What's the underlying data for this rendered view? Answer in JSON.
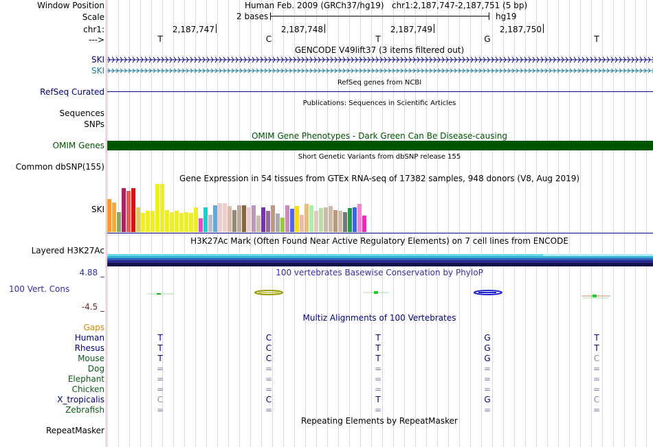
{
  "labels": {
    "window_position": "Window Position",
    "scale": "Scale",
    "chr": "chr1:",
    "arrow": "--->",
    "ski1": "SKI",
    "ski2": "SKI",
    "refseq": "RefSeq Curated",
    "sequences": "Sequences",
    "snps": "SNPs",
    "omim": "OMIM Genes",
    "dbsnp": "Common dbSNP(155)",
    "gtex_ski": "SKI",
    "h3k27ac": "Layered H3K27Ac",
    "cons_top": "4.88 _",
    "cons_name": "100 Vert. Cons",
    "cons_bottom": "-4.5 _",
    "repeatmasker": "RepeatMasker"
  },
  "header": {
    "assembly": "Human Feb. 2009 (GRCh37/hg19)",
    "position": "chr1:2,187,747-2,187,751 (5 bp)",
    "scale_text": "2 bases",
    "db": "hg19",
    "ticks": [
      "2,187,747",
      "2,187,748",
      "2,187,749",
      "2,187,750"
    ],
    "bases": [
      "T",
      "C",
      "T",
      "G",
      "T"
    ]
  },
  "tracks": {
    "gencode": "GENCODE V49lift37 (3 items filtered out)",
    "refseq": "RefSeq genes from NCBI",
    "publications": "Publications: Sequences in Scientific Articles",
    "omim": "OMIM Gene Phenotypes - Dark Green Can Be Disease-causing",
    "dbsnp": "Short Genetic Variants from dbSNP release 155",
    "gtex": "Gene Expression in 54 tissues from GTEx RNA-seq of 17382 samples, 948 donors (V8, Aug 2019)",
    "h3k27ac": "H3K27Ac Mark (Often Found Near Active Regulatory Elements) on 7 cell lines from ENCODE",
    "phylop": "100 vertebrates Basewise Conservation by PhyloP",
    "multiz": "Multiz Alignments of 100 Vertebrates",
    "repeatmasker": "Repeating Elements by RepeatMasker"
  },
  "colors": {
    "navy": "#000080",
    "teal": "#1a7a9a",
    "omim": "#005500",
    "gaps": "#d08a00",
    "mammal_green": "#0a5a1a",
    "cons_blue": "#3030a0",
    "cons_red": "#7a1a1a"
  },
  "gtex": {
    "values": [
      68,
      62,
      42,
      92,
      86,
      92,
      52,
      40,
      44,
      44,
      100,
      100,
      46,
      42,
      44,
      40,
      42,
      40,
      52,
      28,
      52,
      36,
      56,
      60,
      60,
      54,
      46,
      56,
      56,
      52,
      56,
      34,
      52,
      44,
      56,
      38,
      30,
      56,
      48,
      54,
      36,
      58,
      56,
      44,
      50,
      52,
      54,
      46,
      44,
      42,
      50,
      52,
      58,
      34
    ],
    "colors": [
      "#ff9933",
      "#ffaa33",
      "#88aa66",
      "#aa2266",
      "#ee5555",
      "#dd1111",
      "#ddcc66",
      "#eeee22",
      "#eeee22",
      "#eeee22",
      "#eeee22",
      "#eeee22",
      "#eeee22",
      "#eeee22",
      "#eeee22",
      "#eeee22",
      "#eeee22",
      "#eeee22",
      "#eeee22",
      "#ee44cc",
      "#22cccc",
      "#bbbbcc",
      "#66aadd",
      "#eecccc",
      "#eecccc",
      "#ddbbaa",
      "#998877",
      "#bbaa99",
      "#886644",
      "#eecccc",
      "#bb99bb",
      "#ccbbaa",
      "#7733aa",
      "#996699",
      "#bb9988",
      "#aaaaaa",
      "#99cc33",
      "#cc88bb",
      "#5566ee",
      "#ffdd00",
      "#eebbaa",
      "#eebb77",
      "#aaeeaa",
      "#ddccbb",
      "#bbddaa",
      "#ccbbaa",
      "#ccbbaa",
      "#bb9977",
      "#ccbbaa",
      "#777777",
      "#229944",
      "#3366ee",
      "#ee88cc",
      "#ff22cc"
    ]
  },
  "multiz": {
    "species": [
      {
        "name": "Gaps",
        "kind": "gaps",
        "bases": []
      },
      {
        "name": "Human",
        "kind": "primate",
        "bases": [
          "T",
          "C",
          "T",
          "G",
          "T"
        ]
      },
      {
        "name": "Rhesus",
        "kind": "primate",
        "bases": [
          "T",
          "C",
          "T",
          "G",
          "T"
        ]
      },
      {
        "name": "Mouse",
        "kind": "mammal",
        "bases": [
          "T",
          "C",
          "T",
          "G",
          "C"
        ]
      },
      {
        "name": "Dog",
        "kind": "mammal",
        "bases": [
          "=",
          "=",
          "=",
          "=",
          "="
        ]
      },
      {
        "name": "Elephant",
        "kind": "mammal",
        "bases": [
          "=",
          "=",
          "=",
          "=",
          "="
        ]
      },
      {
        "name": "Chicken",
        "kind": "mammal",
        "bases": [
          "=",
          "=",
          "=",
          "=",
          "="
        ]
      },
      {
        "name": "X_tropicalis",
        "kind": "primate",
        "bases": [
          "C",
          "C",
          "T",
          "G",
          "C"
        ]
      },
      {
        "name": "Zebrafish",
        "kind": "mammal",
        "bases": [
          "=",
          "=",
          "=",
          "=",
          "="
        ]
      }
    ],
    "mismatch_markers": [
      {
        "row": 3,
        "col": 4
      },
      {
        "row": 7,
        "col": 0
      },
      {
        "row": 7,
        "col": 4
      }
    ]
  }
}
